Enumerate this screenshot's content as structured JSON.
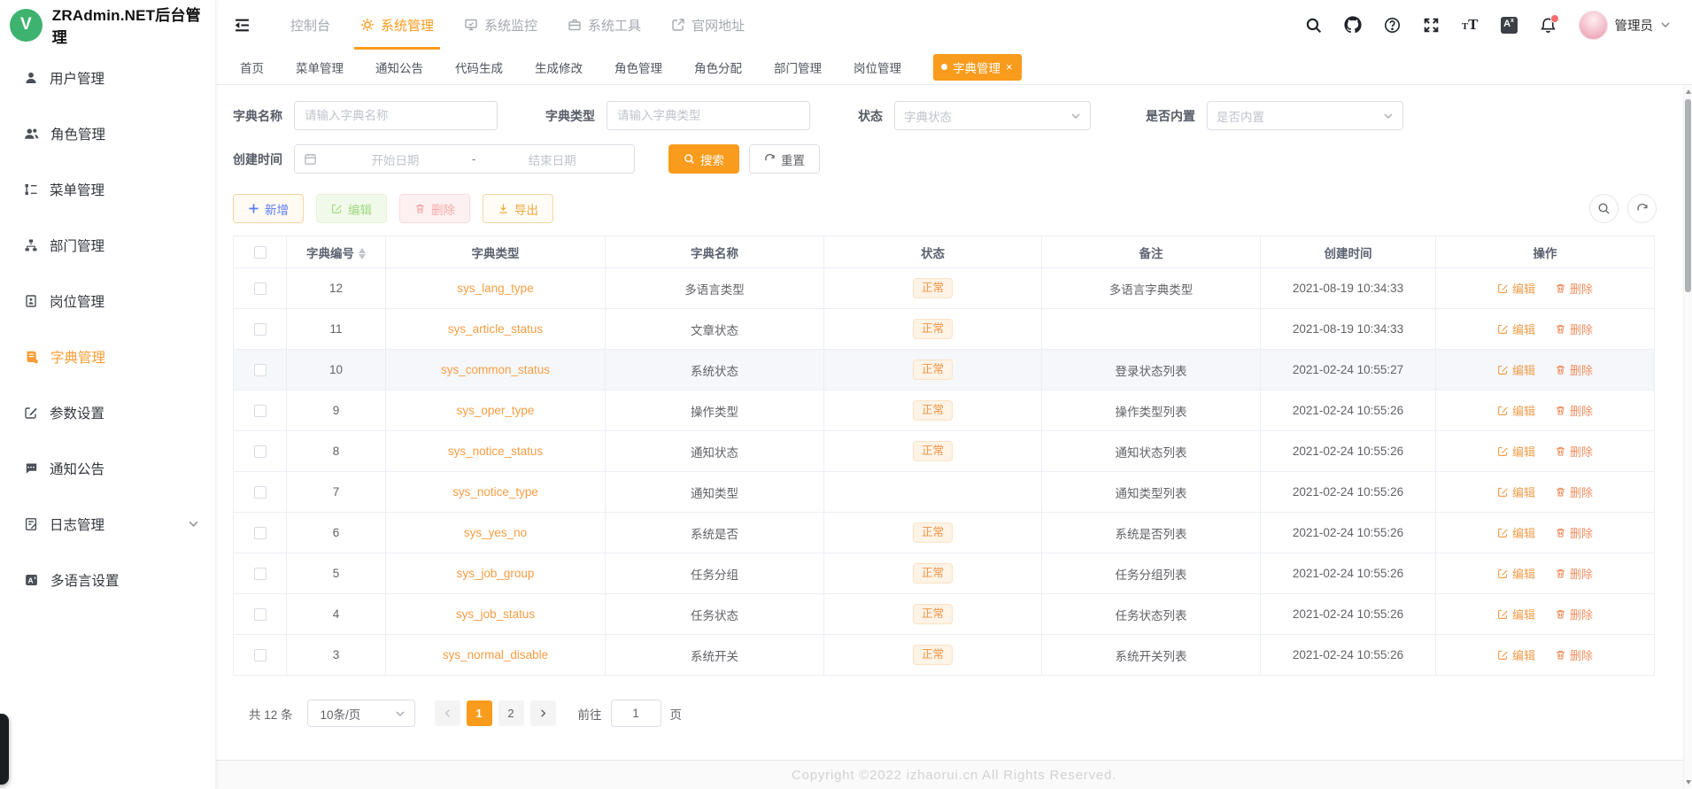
{
  "app": {
    "title": "ZRAdmin.NET后台管理",
    "logo_letter": "V"
  },
  "header": {
    "nav": [
      {
        "label": "控制台",
        "icon": "",
        "active": false
      },
      {
        "label": "系统管理",
        "icon": "gear-icon",
        "active": true
      },
      {
        "label": "系统监控",
        "icon": "monitor-icon",
        "active": false
      },
      {
        "label": "系统工具",
        "icon": "toolbox-icon",
        "active": false
      },
      {
        "label": "官网地址",
        "icon": "external-link-icon",
        "active": false
      }
    ],
    "actions": [
      "search-icon",
      "github-icon",
      "help-icon",
      "fullscreen-icon",
      "font-size-icon",
      "translate-icon",
      "bell-icon"
    ],
    "user": {
      "name": "管理员"
    }
  },
  "sidebar": {
    "items": [
      {
        "label": "用户管理",
        "icon": "user-icon",
        "active": false
      },
      {
        "label": "角色管理",
        "icon": "users-icon",
        "active": false
      },
      {
        "label": "菜单管理",
        "icon": "menu-list-icon",
        "active": false
      },
      {
        "label": "部门管理",
        "icon": "org-chart-icon",
        "active": false
      },
      {
        "label": "岗位管理",
        "icon": "badge-icon",
        "active": false
      },
      {
        "label": "字典管理",
        "icon": "dictionary-icon",
        "active": true
      },
      {
        "label": "参数设置",
        "icon": "settings-edit-icon",
        "active": false
      },
      {
        "label": "通知公告",
        "icon": "announcement-icon",
        "active": false
      },
      {
        "label": "日志管理",
        "icon": "log-icon",
        "active": false,
        "expandable": true
      },
      {
        "label": "多语言设置",
        "icon": "language-icon",
        "active": false
      }
    ]
  },
  "tabs": {
    "items": [
      {
        "label": "首页",
        "active": false
      },
      {
        "label": "菜单管理",
        "active": false
      },
      {
        "label": "通知公告",
        "active": false
      },
      {
        "label": "代码生成",
        "active": false
      },
      {
        "label": "生成修改",
        "active": false
      },
      {
        "label": "角色管理",
        "active": false
      },
      {
        "label": "角色分配",
        "active": false
      },
      {
        "label": "部门管理",
        "active": false
      },
      {
        "label": "岗位管理",
        "active": false
      },
      {
        "label": "字典管理",
        "active": true,
        "closable": true
      }
    ]
  },
  "filters": {
    "dict_name": {
      "label": "字典名称",
      "placeholder": "请输入字典名称"
    },
    "dict_type": {
      "label": "字典类型",
      "placeholder": "请输入字典类型"
    },
    "status": {
      "label": "状态",
      "placeholder": "字典状态"
    },
    "builtin": {
      "label": "是否内置",
      "placeholder": "是否内置"
    },
    "create_time": {
      "label": "创建时间",
      "start_placeholder": "开始日期",
      "separator": "-",
      "end_placeholder": "结束日期"
    },
    "search_label": "搜索",
    "reset_label": "重置"
  },
  "toolbar": {
    "add_label": "新增",
    "edit_label": "编辑",
    "delete_label": "删除",
    "export_label": "导出"
  },
  "table": {
    "columns": [
      "字典编号",
      "字典类型",
      "字典名称",
      "状态",
      "备注",
      "创建时间",
      "操作"
    ],
    "op_edit": "编辑",
    "op_delete": "删除",
    "rows": [
      {
        "id": "12",
        "type": "sys_lang_type",
        "name": "多语言类型",
        "status": "正常",
        "remark": "多语言字典类型",
        "created": "2021-08-19 10:34:33",
        "highlight": false
      },
      {
        "id": "11",
        "type": "sys_article_status",
        "name": "文章状态",
        "status": "正常",
        "remark": "",
        "created": "2021-08-19 10:34:33",
        "highlight": false
      },
      {
        "id": "10",
        "type": "sys_common_status",
        "name": "系统状态",
        "status": "正常",
        "remark": "登录状态列表",
        "created": "2021-02-24 10:55:27",
        "highlight": true
      },
      {
        "id": "9",
        "type": "sys_oper_type",
        "name": "操作类型",
        "status": "正常",
        "remark": "操作类型列表",
        "created": "2021-02-24 10:55:26",
        "highlight": false
      },
      {
        "id": "8",
        "type": "sys_notice_status",
        "name": "通知状态",
        "status": "正常",
        "remark": "通知状态列表",
        "created": "2021-02-24 10:55:26",
        "highlight": false
      },
      {
        "id": "7",
        "type": "sys_notice_type",
        "name": "通知类型",
        "status": "",
        "remark": "通知类型列表",
        "created": "2021-02-24 10:55:26",
        "highlight": false
      },
      {
        "id": "6",
        "type": "sys_yes_no",
        "name": "系统是否",
        "status": "正常",
        "remark": "系统是否列表",
        "created": "2021-02-24 10:55:26",
        "highlight": false
      },
      {
        "id": "5",
        "type": "sys_job_group",
        "name": "任务分组",
        "status": "正常",
        "remark": "任务分组列表",
        "created": "2021-02-24 10:55:26",
        "highlight": false
      },
      {
        "id": "4",
        "type": "sys_job_status",
        "name": "任务状态",
        "status": "正常",
        "remark": "任务状态列表",
        "created": "2021-02-24 10:55:26",
        "highlight": false
      },
      {
        "id": "3",
        "type": "sys_normal_disable",
        "name": "系统开关",
        "status": "正常",
        "remark": "系统开关列表",
        "created": "2021-02-24 10:55:26",
        "highlight": false
      }
    ]
  },
  "pagination": {
    "total_text": "共 12 条",
    "page_size": "10条/页",
    "pages": [
      "1",
      "2"
    ],
    "active_page": "1",
    "goto_label": "前往",
    "goto_value": "1",
    "goto_suffix": "页"
  },
  "footer": {
    "copyright": "Copyright ©2022 izhaorui.cn All Rights Reserved."
  },
  "colors": {
    "theme": "#f99b1c",
    "tag_text": "#f09342",
    "link": "#f99d43",
    "logo_green": "#3eb370"
  }
}
